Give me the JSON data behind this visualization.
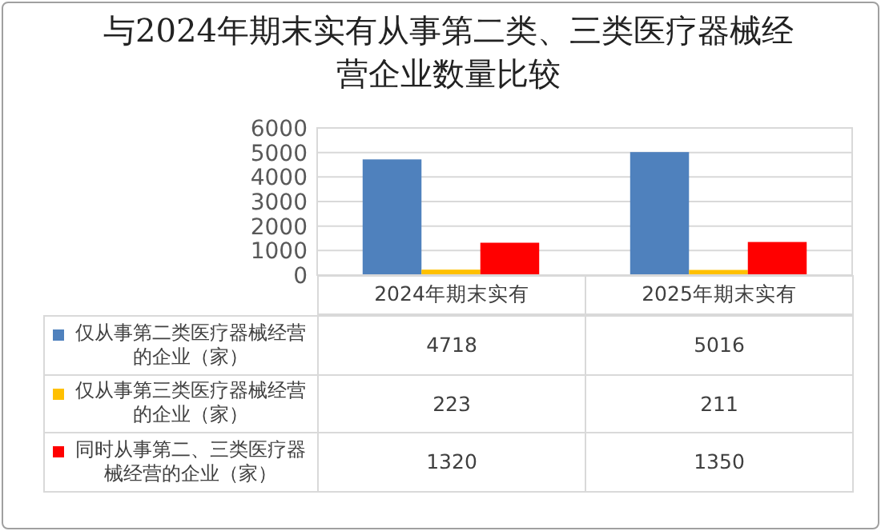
{
  "chart_data": {
    "type": "bar",
    "title": "与2024年期末实有从事第二类、三类医疗器械经营企业数量比较",
    "categories": [
      "2024年期末实有",
      "2025年期末实有"
    ],
    "series": [
      {
        "name": "仅从事第二类医疗器械经营的企业（家）",
        "color": "#4f81bd",
        "values": [
          4718,
          5016
        ]
      },
      {
        "name": "仅从事第三类医疗器械经营的企业（家）",
        "color": "#ffc000",
        "values": [
          223,
          211
        ]
      },
      {
        "name": "同时从事第二、三类医疗器械经营的企业（家）",
        "color": "#ff0000",
        "values": [
          1320,
          1350
        ]
      }
    ],
    "ylim": [
      0,
      6000
    ],
    "yticks": [
      0,
      1000,
      2000,
      3000,
      4000,
      5000,
      6000
    ],
    "grid": "y",
    "legend": "bottom",
    "data_labels": true
  }
}
